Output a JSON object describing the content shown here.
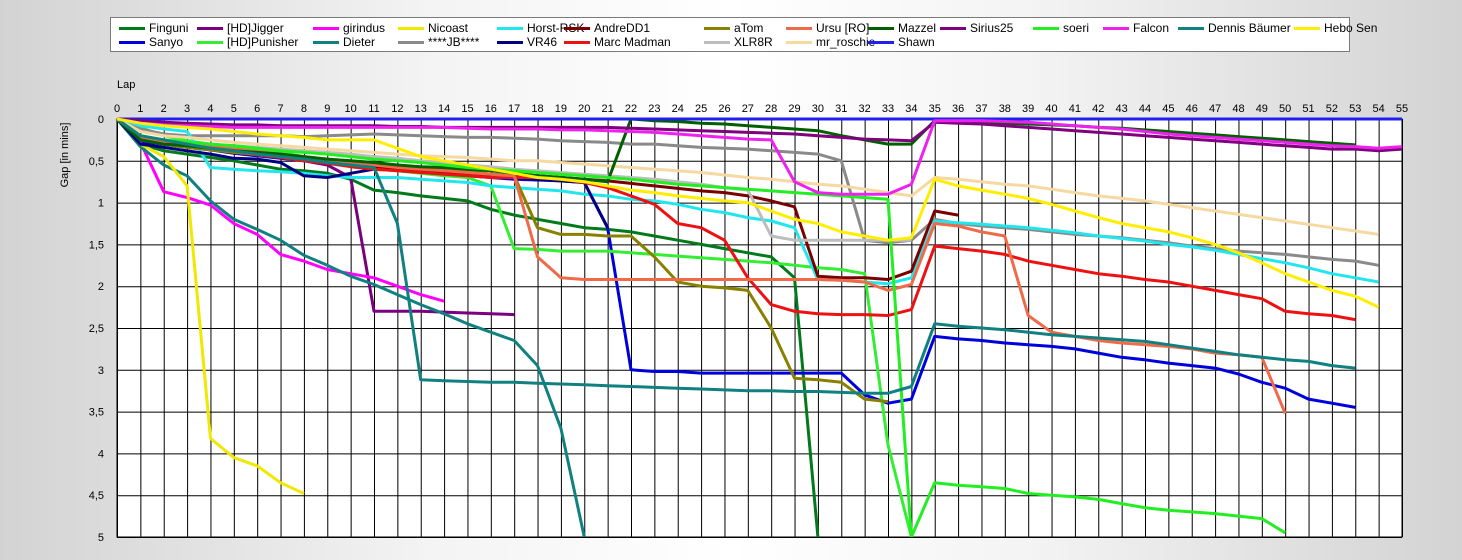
{
  "chart_data": {
    "type": "line",
    "xlabel": "Lap",
    "ylabel": "Gap [in mins]",
    "xlim": [
      0,
      55
    ],
    "ylim": [
      0,
      5
    ],
    "y_inverted": true,
    "grid": true,
    "legend_position": "top",
    "x_ticks": [
      0,
      1,
      2,
      3,
      4,
      5,
      6,
      7,
      8,
      9,
      10,
      11,
      12,
      13,
      14,
      15,
      16,
      17,
      18,
      19,
      20,
      21,
      22,
      23,
      24,
      25,
      26,
      27,
      28,
      29,
      30,
      31,
      32,
      33,
      34,
      35,
      36,
      37,
      38,
      39,
      40,
      41,
      42,
      43,
      44,
      45,
      46,
      47,
      48,
      49,
      50,
      51,
      52,
      53,
      54,
      55
    ],
    "y_ticks": [
      {
        "value": 0,
        "label": "0"
      },
      {
        "value": 0.5,
        "label": "0,5"
      },
      {
        "value": 1,
        "label": "1"
      },
      {
        "value": 1.5,
        "label": "1,5"
      },
      {
        "value": 2,
        "label": "2"
      },
      {
        "value": 2.5,
        "label": "2,5"
      },
      {
        "value": 3,
        "label": "3"
      },
      {
        "value": 3.5,
        "label": "3,5"
      },
      {
        "value": 4,
        "label": "4"
      },
      {
        "value": 4.5,
        "label": "4,5"
      },
      {
        "value": 5,
        "label": "5"
      }
    ],
    "series": [
      {
        "name": "Finguni",
        "color": "#007a1a",
        "values": [
          0,
          0.3,
          0.38,
          0.42,
          0.46,
          0.5,
          0.55,
          0.6,
          0.62,
          0.65,
          0.72,
          0.85,
          0.88,
          0.92,
          0.95,
          0.98,
          1.08,
          1.15,
          1.2,
          1.25,
          1.3,
          1.32,
          1.35,
          1.4,
          1.45,
          1.5,
          1.55,
          1.6,
          1.65,
          1.9,
          5.0
        ]
      },
      {
        "name": "Sanyo",
        "color": "#0000dd",
        "values": [
          0,
          0.27,
          0.3,
          0.34,
          0.37,
          0.41,
          0.44,
          0.47,
          0.5,
          0.52,
          0.56,
          0.58,
          0.6,
          0.63,
          0.65,
          0.68,
          0.7,
          0.72,
          0.73,
          0.74,
          0.76,
          1.3,
          3.0,
          3.02,
          3.02,
          3.04,
          3.04,
          3.04,
          3.04,
          3.04,
          3.04,
          3.04,
          3.3,
          3.4,
          3.35,
          2.6,
          2.63,
          2.65,
          2.68,
          2.7,
          2.72,
          2.75,
          2.8,
          2.85,
          2.88,
          2.92,
          2.95,
          2.98,
          3.05,
          3.15,
          3.22,
          3.35,
          3.4,
          3.45
        ]
      },
      {
        "name": "[HD]Jigger",
        "color": "#7a0080",
        "values": [
          0,
          0.25,
          0.3,
          0.33,
          0.36,
          0.4,
          0.43,
          0.46,
          0.5,
          0.55,
          0.7,
          2.3,
          2.3,
          2.3,
          2.31,
          2.32,
          2.33,
          2.34
        ]
      },
      {
        "name": "[HD]Punisher",
        "color": "#33ee33",
        "values": [
          0,
          0.1,
          0.2,
          0.26,
          0.3,
          0.33,
          0.36,
          0.4,
          0.45,
          0.5,
          0.55,
          0.6,
          0.62,
          0.65,
          0.68,
          0.7,
          0.8,
          1.55,
          1.56,
          1.58,
          1.58,
          1.58,
          1.6,
          1.62,
          1.64,
          1.66,
          1.68,
          1.7,
          1.72,
          1.75,
          1.78,
          1.8,
          1.85,
          3.9,
          5.0
        ]
      },
      {
        "name": "girindus",
        "color": "#ff00ff",
        "values": [
          0,
          0.28,
          0.87,
          0.94,
          1.03,
          1.25,
          1.38,
          1.62,
          1.7,
          1.8,
          1.85,
          1.9,
          2.0,
          2.1,
          2.18
        ]
      },
      {
        "name": "Dieter",
        "color": "#108080",
        "values": [
          0,
          0.33,
          0.55,
          0.68,
          0.98,
          1.2,
          1.32,
          1.45,
          1.63,
          1.75,
          1.88,
          1.98,
          2.1,
          2.22,
          2.33,
          2.45,
          2.55,
          2.65,
          2.95,
          3.7,
          5.0
        ]
      },
      {
        "name": "Nicoast",
        "color": "#f0e800",
        "values": [
          0,
          0.3,
          0.45,
          0.8,
          3.82,
          4.05,
          4.15,
          4.35,
          4.48
        ]
      },
      {
        "name": "****JB****",
        "color": "#8a8a8a",
        "values": [
          0,
          0.12,
          0.18,
          0.2,
          0.2,
          0.2,
          0.2,
          0.2,
          0.21,
          0.2,
          0.19,
          0.18,
          0.19,
          0.2,
          0.21,
          0.22,
          0.22,
          0.23,
          0.24,
          0.26,
          0.27,
          0.28,
          0.3,
          0.3,
          0.32,
          0.34,
          0.35,
          0.36,
          0.38,
          0.4,
          0.42,
          0.5,
          1.45,
          1.48,
          1.45,
          1.2,
          1.25,
          1.28,
          1.3,
          1.32,
          1.35,
          1.38,
          1.4,
          1.42,
          1.45,
          1.48,
          1.52,
          1.55,
          1.58,
          1.6,
          1.62,
          1.65,
          1.68,
          1.7,
          1.75
        ]
      },
      {
        "name": "Horst-RSK",
        "color": "#22e6ee",
        "values": [
          0,
          0.08,
          0.12,
          0.15,
          0.58,
          0.6,
          0.62,
          0.63,
          0.65,
          0.68,
          0.7,
          0.7,
          0.7,
          0.72,
          0.74,
          0.76,
          0.8,
          0.82,
          0.84,
          0.86,
          0.9,
          0.92,
          0.96,
          0.98,
          1.02,
          1.08,
          1.12,
          1.18,
          1.22,
          1.3,
          1.92,
          1.93,
          1.95,
          1.97,
          1.9,
          1.22,
          1.24,
          1.26,
          1.28,
          1.3,
          1.33,
          1.36,
          1.4,
          1.43,
          1.46,
          1.5,
          1.53,
          1.57,
          1.62,
          1.67,
          1.72,
          1.78,
          1.85,
          1.9,
          1.95
        ]
      },
      {
        "name": "VR46",
        "color": "#000080",
        "values": [
          0,
          0.3,
          0.34,
          0.38,
          0.42,
          0.47,
          0.48,
          0.52,
          0.68,
          0.7,
          0.65,
          0.6,
          0.6,
          0.62,
          0.64,
          0.66,
          0.68,
          0.7,
          0.72,
          0.74,
          0.76,
          1.3
        ]
      },
      {
        "name": "AndreDD1",
        "color": "#7a0000",
        "values": [
          0,
          0.22,
          0.28,
          0.32,
          0.36,
          0.4,
          0.42,
          0.45,
          0.48,
          0.52,
          0.55,
          0.58,
          0.6,
          0.62,
          0.64,
          0.66,
          0.66,
          0.68,
          0.68,
          0.7,
          0.72,
          0.74,
          0.77,
          0.8,
          0.83,
          0.86,
          0.88,
          0.92,
          0.98,
          1.05,
          1.88,
          1.9,
          1.9,
          1.92,
          1.82,
          1.1,
          1.15
        ]
      },
      {
        "name": "Marc Madman",
        "color": "#ee1111",
        "values": [
          0,
          0.22,
          0.28,
          0.32,
          0.36,
          0.4,
          0.43,
          0.46,
          0.5,
          0.53,
          0.57,
          0.6,
          0.62,
          0.64,
          0.66,
          0.68,
          0.7,
          0.7,
          0.7,
          0.72,
          0.76,
          0.82,
          0.92,
          1.02,
          1.25,
          1.3,
          1.45,
          1.9,
          2.22,
          2.3,
          2.33,
          2.34,
          2.34,
          2.35,
          2.28,
          1.52,
          1.55,
          1.58,
          1.62,
          1.7,
          1.75,
          1.8,
          1.85,
          1.88,
          1.92,
          1.95,
          2.0,
          2.05,
          2.1,
          2.15,
          2.3,
          2.33,
          2.35,
          2.4
        ]
      },
      {
        "name": "aTom",
        "color": "#8a8000",
        "values": [
          0,
          0.25,
          0.3,
          0.34,
          0.37,
          0.4,
          0.42,
          0.45,
          0.48,
          0.5,
          0.52,
          0.54,
          0.56,
          0.58,
          0.6,
          0.62,
          0.66,
          0.68,
          1.3,
          1.38,
          1.38,
          1.4,
          1.4,
          1.65,
          1.95,
          2.0,
          2.02,
          2.05,
          2.5,
          3.1,
          3.12,
          3.15,
          3.35,
          3.38
        ]
      },
      {
        "name": "XLR8R",
        "color": "#bdbdbd",
        "values": [
          0,
          0.2,
          0.25,
          0.28,
          0.3,
          0.32,
          0.34,
          0.36,
          0.38,
          0.4,
          0.42,
          0.45,
          0.47,
          0.5,
          0.52,
          0.55,
          0.57,
          0.6,
          0.62,
          0.64,
          0.66,
          0.68,
          0.7,
          0.72,
          0.75,
          0.78,
          0.82,
          0.85,
          1.4,
          1.45,
          1.45,
          1.45,
          1.45,
          1.45,
          1.45
        ]
      },
      {
        "name": "Ursu [RO]",
        "color": "#f06a4a",
        "values": [
          0,
          0.22,
          0.27,
          0.3,
          0.33,
          0.36,
          0.39,
          0.42,
          0.45,
          0.48,
          0.52,
          0.55,
          0.58,
          0.6,
          0.62,
          0.64,
          0.66,
          0.68,
          1.65,
          1.9,
          1.92,
          1.92,
          1.92,
          1.92,
          1.92,
          1.92,
          1.92,
          1.92,
          1.92,
          1.92,
          1.92,
          1.93,
          1.95,
          2.05,
          1.98,
          1.25,
          1.28,
          1.35,
          1.4,
          2.35,
          2.55,
          2.6,
          2.65,
          2.68,
          2.7,
          2.72,
          2.75,
          2.8,
          2.82,
          2.85,
          3.52
        ]
      },
      {
        "name": "mr_roschie",
        "color": "#f5d9a0",
        "values": [
          0,
          0.15,
          0.2,
          0.22,
          0.25,
          0.28,
          0.3,
          0.32,
          0.34,
          0.36,
          0.38,
          0.4,
          0.42,
          0.44,
          0.45,
          0.46,
          0.48,
          0.5,
          0.5,
          0.52,
          0.54,
          0.56,
          0.58,
          0.6,
          0.62,
          0.64,
          0.67,
          0.7,
          0.72,
          0.75,
          0.78,
          0.8,
          0.84,
          0.88,
          0.92,
          0.7,
          0.72,
          0.75,
          0.78,
          0.8,
          0.84,
          0.88,
          0.92,
          0.95,
          0.98,
          1.02,
          1.06,
          1.1,
          1.14,
          1.18,
          1.22,
          1.26,
          1.3,
          1.34,
          1.38
        ]
      },
      {
        "name": "Mazzel",
        "color": "#006000",
        "values": [
          0,
          0.25,
          0.3,
          0.32,
          0.35,
          0.38,
          0.4,
          0.42,
          0.45,
          0.48,
          0.5,
          0.52,
          0.55,
          0.57,
          0.58,
          0.6,
          0.62,
          0.65,
          0.68,
          0.7,
          0.72,
          0.75,
          0.0,
          0.02,
          0.03,
          0.05,
          0.06,
          0.08,
          0.1,
          0.12,
          0.14,
          0.2,
          0.25,
          0.3,
          0.3,
          0.02,
          0.03,
          0.04,
          0.05,
          0.06,
          0.07,
          0.08,
          0.1,
          0.11,
          0.13,
          0.15,
          0.17,
          0.19,
          0.21,
          0.23,
          0.25,
          0.27,
          0.29,
          0.31
        ]
      },
      {
        "name": "Shawn",
        "color": "#2020ee",
        "values": [
          0,
          0,
          0,
          0,
          0,
          0,
          0,
          0,
          0,
          0,
          0,
          0,
          0,
          0,
          0,
          0,
          0,
          0,
          0,
          0,
          0,
          0,
          0,
          0,
          0,
          0,
          0,
          0,
          0,
          0,
          0,
          0,
          0,
          0,
          0,
          0,
          0,
          0,
          0,
          0,
          0,
          0,
          0,
          0,
          0,
          0,
          0,
          0,
          0,
          0,
          0,
          0,
          0,
          0,
          0,
          0
        ]
      },
      {
        "name": "Sirius25",
        "color": "#800080",
        "values": [
          0,
          0.02,
          0.04,
          0.05,
          0.06,
          0.07,
          0.07,
          0.08,
          0.08,
          0.08,
          0.08,
          0.08,
          0.09,
          0.09,
          0.1,
          0.1,
          0.1,
          0.1,
          0.1,
          0.1,
          0.1,
          0.1,
          0.11,
          0.12,
          0.13,
          0.14,
          0.15,
          0.16,
          0.17,
          0.18,
          0.2,
          0.22,
          0.24,
          0.25,
          0.26,
          0.04,
          0.05,
          0.06,
          0.08,
          0.1,
          0.12,
          0.14,
          0.16,
          0.18,
          0.2,
          0.22,
          0.24,
          0.26,
          0.28,
          0.3,
          0.32,
          0.34,
          0.36,
          0.36,
          0.38,
          0.36
        ]
      },
      {
        "name": "soeri",
        "color": "#22ee22",
        "values": [
          0,
          0.2,
          0.25,
          0.28,
          0.3,
          0.32,
          0.35,
          0.38,
          0.4,
          0.42,
          0.45,
          0.48,
          0.5,
          0.52,
          0.55,
          0.58,
          0.6,
          0.62,
          0.64,
          0.66,
          0.68,
          0.7,
          0.72,
          0.75,
          0.78,
          0.8,
          0.82,
          0.84,
          0.86,
          0.88,
          0.9,
          0.92,
          0.94,
          0.96,
          5.0,
          4.35,
          4.38,
          4.4,
          4.42,
          4.48,
          4.5,
          4.52,
          4.55,
          4.6,
          4.65,
          4.68,
          4.7,
          4.72,
          4.75,
          4.78,
          4.95
        ]
      },
      {
        "name": "Falcon",
        "color": "#ee22ee",
        "values": [
          0,
          0.05,
          0.07,
          0.08,
          0.09,
          0.1,
          0.1,
          0.1,
          0.1,
          0.1,
          0.1,
          0.1,
          0.1,
          0.1,
          0.1,
          0.11,
          0.12,
          0.12,
          0.12,
          0.13,
          0.13,
          0.14,
          0.15,
          0.16,
          0.18,
          0.2,
          0.22,
          0.24,
          0.25,
          0.75,
          0.88,
          0.9,
          0.9,
          0.9,
          0.78,
          0.02,
          0.02,
          0.02,
          0.03,
          0.04,
          0.06,
          0.08,
          0.1,
          0.12,
          0.15,
          0.18,
          0.2,
          0.22,
          0.24,
          0.26,
          0.28,
          0.3,
          0.32,
          0.33,
          0.35,
          0.33
        ]
      },
      {
        "name": "Dennis Bäumer",
        "color": "#108080",
        "values": [
          0,
          0.2,
          0.25,
          0.3,
          0.35,
          0.38,
          0.42,
          0.45,
          0.48,
          0.52,
          0.55,
          0.58,
          1.25,
          3.12,
          3.13,
          3.14,
          3.15,
          3.15,
          3.16,
          3.17,
          3.18,
          3.19,
          3.2,
          3.21,
          3.22,
          3.23,
          3.24,
          3.25,
          3.25,
          3.26,
          3.26,
          3.27,
          3.28,
          3.28,
          3.2,
          2.45,
          2.48,
          2.5,
          2.52,
          2.55,
          2.58,
          2.6,
          2.62,
          2.64,
          2.66,
          2.7,
          2.74,
          2.78,
          2.82,
          2.85,
          2.88,
          2.9,
          2.95,
          2.98
        ]
      },
      {
        "name": "Hebo Sen",
        "color": "#ffee00",
        "values": [
          0,
          0.05,
          0.08,
          0.1,
          0.12,
          0.15,
          0.18,
          0.2,
          0.22,
          0.25,
          0.25,
          0.25,
          0.35,
          0.45,
          0.5,
          0.55,
          0.6,
          0.65,
          0.7,
          0.72,
          0.75,
          0.8,
          0.85,
          0.88,
          0.92,
          0.95,
          0.98,
          1.0,
          1.1,
          1.2,
          1.25,
          1.35,
          1.4,
          1.45,
          1.42,
          0.72,
          0.8,
          0.85,
          0.9,
          0.95,
          1.02,
          1.1,
          1.18,
          1.25,
          1.3,
          1.35,
          1.42,
          1.5,
          1.6,
          1.72,
          1.85,
          1.95,
          2.05,
          2.12,
          2.25
        ]
      }
    ],
    "legend_rows": [
      [
        "Finguni",
        "[HD]Jigger",
        "girindus",
        "Nicoast",
        "Horst-RSK",
        "AndreDD1",
        "aTom",
        "Ursu [RO]",
        "Mazzel",
        "Sirius25",
        "soeri",
        "Falcon",
        "Dennis Bäumer",
        "Hebo Sen"
      ],
      [
        "Sanyo",
        "[HD]Punisher",
        "Dieter",
        "****JB****",
        "VR46",
        "Marc Madman",
        "XLR8R",
        "mr_roschie",
        "Shawn"
      ]
    ]
  }
}
